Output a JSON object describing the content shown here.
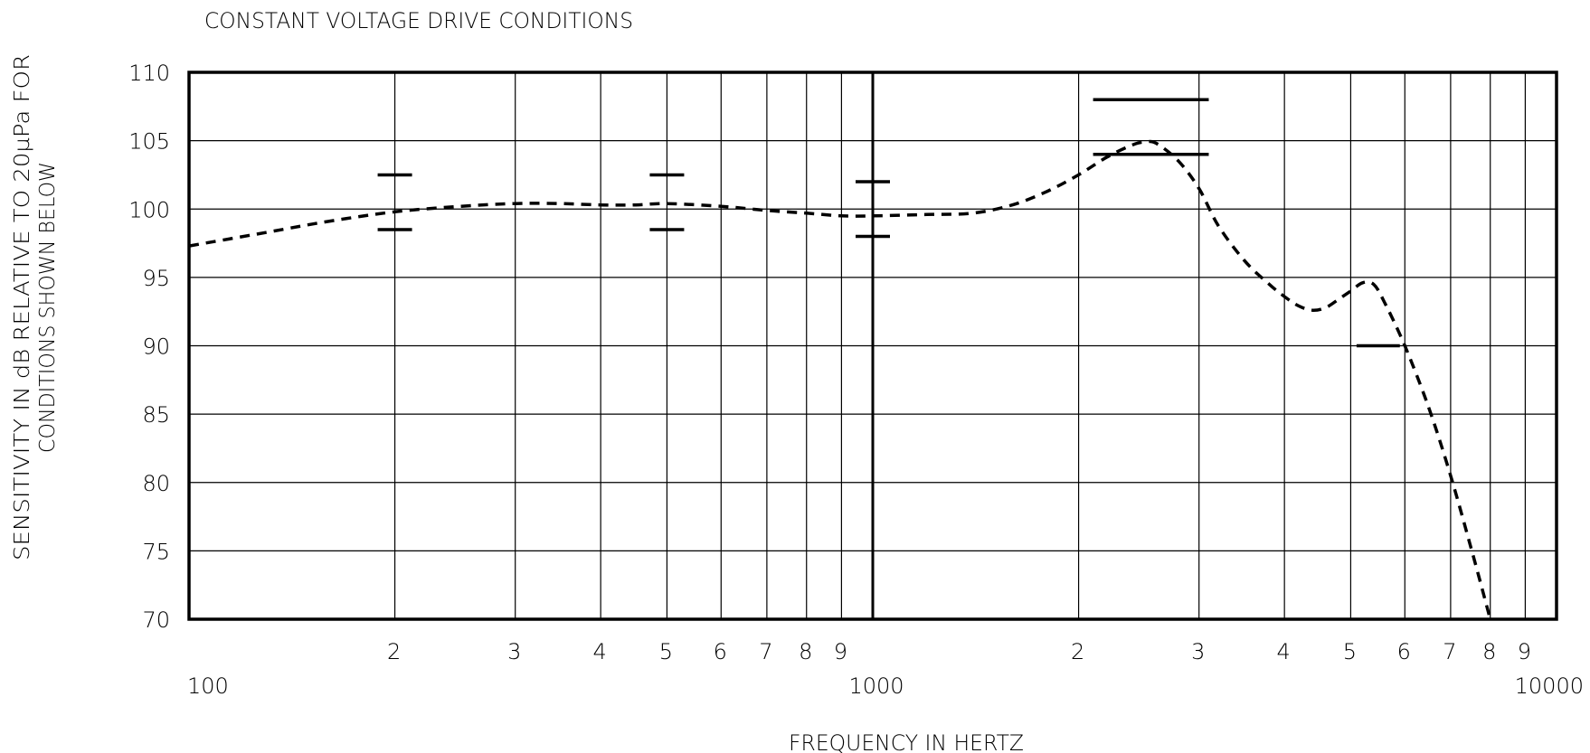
{
  "chart_data": {
    "type": "line",
    "title": "CONSTANT VOLTAGE DRIVE CONDITIONS",
    "xlabel": "FREQUENCY IN HERTZ",
    "ylabel_line1": "SENSITIVITY IN dB RELATIVE TO 20µPa FOR",
    "ylabel_line2": "CONDITIONS SHOWN BELOW",
    "x_scale": "log",
    "xlim": [
      100,
      10000
    ],
    "ylim": [
      70,
      110
    ],
    "grid": true,
    "y_ticks": [
      70,
      75,
      80,
      85,
      90,
      95,
      100,
      105,
      110
    ],
    "y_tick_labels": [
      "70",
      "75",
      "80",
      "85",
      "90",
      "95",
      "100",
      "105",
      "110"
    ],
    "x_minor_ticks": [
      {
        "value": 200,
        "label": "2"
      },
      {
        "value": 300,
        "label": "3"
      },
      {
        "value": 400,
        "label": "4"
      },
      {
        "value": 500,
        "label": "5"
      },
      {
        "value": 600,
        "label": "6"
      },
      {
        "value": 700,
        "label": "7"
      },
      {
        "value": 800,
        "label": "8"
      },
      {
        "value": 900,
        "label": "9"
      },
      {
        "value": 2000,
        "label": "2"
      },
      {
        "value": 3000,
        "label": "3"
      },
      {
        "value": 4000,
        "label": "4"
      },
      {
        "value": 5000,
        "label": "5"
      },
      {
        "value": 6000,
        "label": "6"
      },
      {
        "value": 7000,
        "label": "7"
      },
      {
        "value": 8000,
        "label": "8"
      },
      {
        "value": 9000,
        "label": "9"
      }
    ],
    "x_major_ticks": [
      {
        "value": 100,
        "label": "100"
      },
      {
        "value": 1000,
        "label": "1000"
      },
      {
        "value": 10000,
        "label": "10000"
      }
    ],
    "series": [
      {
        "style": "dashed",
        "x": [
          100,
          130,
          160,
          200,
          250,
          300,
          350,
          400,
          450,
          500,
          600,
          700,
          800,
          900,
          1000,
          1200,
          1400,
          1600,
          1800,
          2000,
          2200,
          2400,
          2500,
          2600,
          2800,
          3000,
          3200,
          3500,
          3800,
          4000,
          4200,
          4400,
          4600,
          4800,
          5000,
          5200,
          5400,
          5600,
          6000,
          6500,
          7000,
          7500,
          8000
        ],
        "y": [
          97.3,
          98.3,
          99.1,
          99.8,
          100.2,
          100.4,
          100.4,
          100.3,
          100.3,
          100.4,
          100.2,
          99.9,
          99.7,
          99.5,
          99.5,
          99.6,
          99.7,
          100.3,
          101.3,
          102.5,
          103.8,
          104.7,
          104.9,
          104.8,
          103.5,
          101.5,
          98.8,
          96.2,
          94.5,
          93.6,
          92.9,
          92.6,
          92.8,
          93.4,
          94.0,
          94.6,
          94.5,
          93.2,
          90.0,
          85.5,
          80.5,
          75.2,
          70.0
        ]
      }
    ],
    "limit_markers": [
      {
        "x": 200,
        "y": 102.5
      },
      {
        "x": 200,
        "y": 98.5
      },
      {
        "x": 500,
        "y": 102.5
      },
      {
        "x": 500,
        "y": 98.5
      },
      {
        "x": 1000,
        "y": 102.0
      },
      {
        "x": 1000,
        "y": 98.0
      },
      {
        "x_start": 2100,
        "x_end": 3100,
        "y": 108.0
      },
      {
        "x_start": 2100,
        "x_end": 3100,
        "y": 104.0
      },
      {
        "x_start": 5100,
        "x_end": 5900,
        "y": 90.0
      }
    ]
  }
}
